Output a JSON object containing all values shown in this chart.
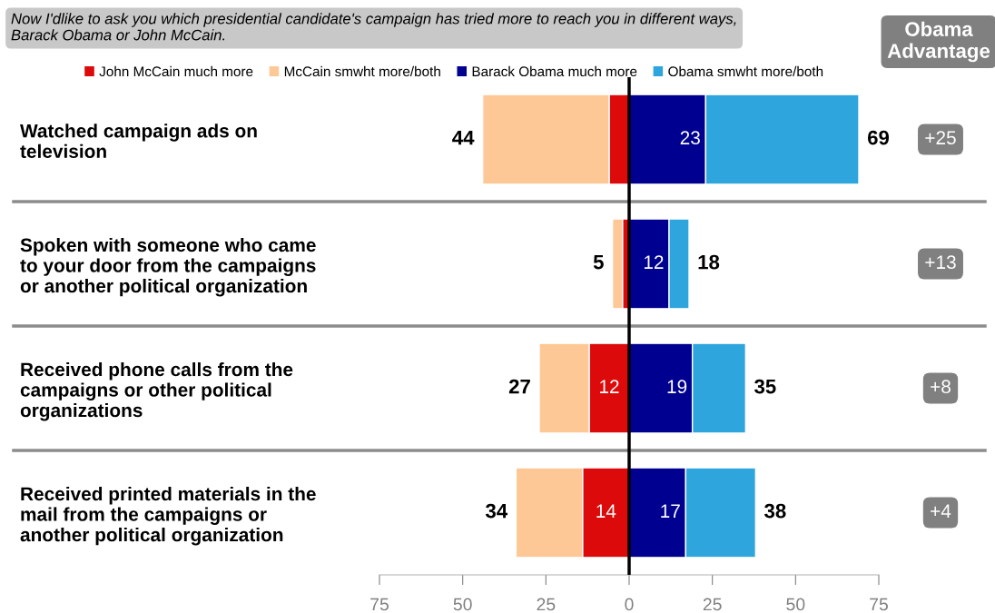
{
  "chart_data": {
    "type": "bar",
    "orientation": "horizontal",
    "title": "Now I'dlike to ask you which presidential candidate's campaign has tried more to reach you in different ways,\nBarack Obama or John McCain.",
    "categories": [
      "Watched campaign ads on\ntelevision",
      "Spoken with someone who came\nto your door from the campaigns\nor another political organization",
      "Received phone calls from the\ncampaigns or other political\norganizations",
      "Received printed materials in the\nmail from the campaigns or\nanother political organization"
    ],
    "series": [
      {
        "name": "John McCain much more",
        "color": "#dc0a0a",
        "values": [
          6,
          2,
          12,
          14
        ],
        "base": [
          -6,
          -2,
          -12,
          -14
        ],
        "value_labels": [
          null,
          null,
          "12",
          "14"
        ]
      },
      {
        "name": "McCain smwht more/both",
        "color": "#fdc896",
        "values": [
          38,
          3,
          15,
          20
        ],
        "base": [
          -44,
          -5,
          -27,
          -34
        ],
        "value_labels": [
          null,
          null,
          null,
          null
        ]
      },
      {
        "name": "Barack Obama much more",
        "color": "#000090",
        "values": [
          23,
          12,
          19,
          17
        ],
        "base": [
          0,
          0,
          0,
          0
        ],
        "value_labels": [
          "23",
          "12",
          "19",
          "17"
        ]
      },
      {
        "name": "Obama smwht more/both",
        "color": "#2ea5dc",
        "values": [
          46,
          6,
          16,
          21
        ],
        "base": [
          23,
          12,
          19,
          17
        ],
        "value_labels": [
          null,
          null,
          null,
          null
        ]
      }
    ],
    "totals": [
      [
        "44",
        "69"
      ],
      [
        "5",
        "18"
      ],
      [
        "27",
        "35"
      ],
      [
        "34",
        "38"
      ]
    ],
    "xlim": [
      -75,
      75
    ],
    "xticks": [
      {
        "value": -75,
        "label": "75"
      },
      {
        "value": -50,
        "label": "50"
      },
      {
        "value": -25,
        "label": "25"
      },
      0,
      25,
      50,
      75
    ],
    "ref_lines": [
      {
        "axis": "x",
        "value": 0,
        "color": "#000000"
      }
    ],
    "annotations": [
      "Obama\nAdvantage",
      "+25",
      "+13",
      "+8",
      "+4"
    ],
    "legend": "top",
    "grid": false
  }
}
